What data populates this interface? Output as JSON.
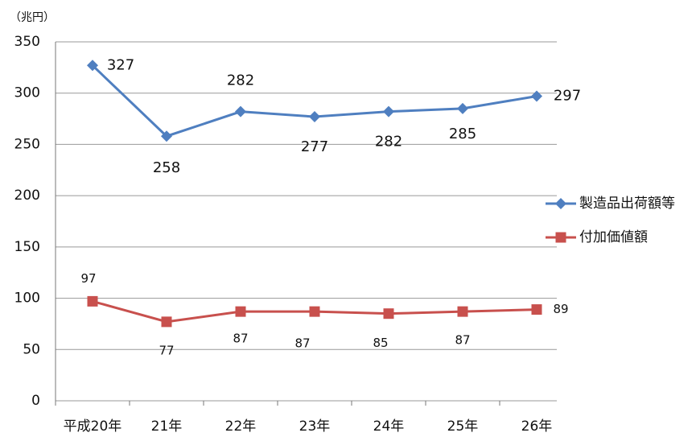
{
  "chart_data": {
    "type": "line",
    "y_axis_label": "（兆円）",
    "categories": [
      "平成20年",
      "21年",
      "22年",
      "23年",
      "24年",
      "25年",
      "26年"
    ],
    "series": [
      {
        "name": "製造品出荷額等",
        "color": "#4f7fc0",
        "marker": "diamond",
        "values": [
          327,
          258,
          282,
          277,
          282,
          285,
          297
        ]
      },
      {
        "name": "付加価値額",
        "color": "#c8504d",
        "marker": "square",
        "values": [
          97,
          77,
          87,
          87,
          85,
          87,
          89
        ]
      }
    ],
    "ylim": [
      0,
      350
    ],
    "yticks": [
      0,
      50,
      100,
      150,
      200,
      250,
      300,
      350
    ],
    "grid": true,
    "legend": "right"
  }
}
